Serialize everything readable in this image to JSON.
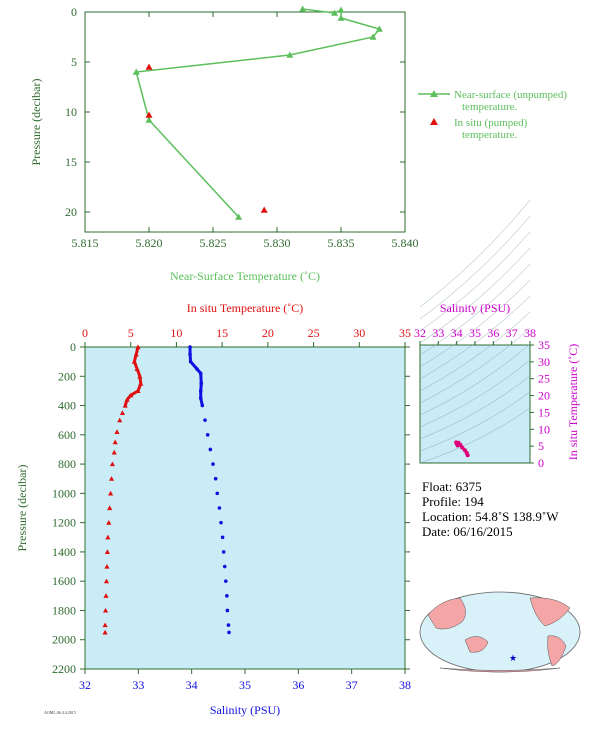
{
  "colors": {
    "axis": "#2f6b2f",
    "near_surface": "#5cbf5c",
    "in_situ_temp": "#e01010",
    "salinity": "#1010e0",
    "salinity_axis": "#cc00cc",
    "panel_bg": "#c9ecf7",
    "map_land": "#f4a6a6",
    "map_ocean": "#d9f2fa"
  },
  "chart_data": [
    {
      "type": "line",
      "xlabel": "Near-Surface Temperature (˚C)",
      "ylabel": "Pressure (decibar)",
      "xlim": [
        5.815,
        5.84
      ],
      "ylim": [
        0,
        22
      ],
      "y_inverted": true,
      "x_ticks": [
        "5.815",
        "5.820",
        "5.825",
        "5.830",
        "5.835",
        "5.840"
      ],
      "y_ticks": [
        "0",
        "5",
        "10",
        "15",
        "20"
      ],
      "legend_position": "right",
      "series": [
        {
          "name": "Near-surface (unpumped) temperature.",
          "marker": "triangle",
          "line": true,
          "points": [
            [
              5.832,
              -0.3
            ],
            [
              5.8345,
              0.1
            ],
            [
              5.835,
              -0.2
            ],
            [
              5.835,
              0.6
            ],
            [
              5.838,
              1.7
            ],
            [
              5.8375,
              2.5
            ],
            [
              5.831,
              4.3
            ],
            [
              5.819,
              6.0
            ],
            [
              5.82,
              10.8
            ],
            [
              5.827,
              20.5
            ]
          ]
        },
        {
          "name": "In situ (pumped) temperature.",
          "marker": "triangle",
          "line": false,
          "points": [
            [
              5.82,
              5.5
            ],
            [
              5.82,
              10.3
            ],
            [
              5.829,
              19.8
            ]
          ]
        }
      ]
    },
    {
      "type": "line",
      "xlabel_top": "In situ Temperature (˚C)",
      "xlabel_bottom": "Salinity (PSU)",
      "ylabel": "Pressure (decibar)",
      "temperature_lim": [
        0,
        35
      ],
      "salinity_lim": [
        32,
        38
      ],
      "pressure_lim": [
        0,
        2200
      ],
      "y_inverted": true,
      "temperature_ticks": [
        "0",
        "5",
        "10",
        "15",
        "20",
        "25",
        "30",
        "35"
      ],
      "salinity_ticks": [
        "32",
        "33",
        "34",
        "35",
        "36",
        "37",
        "38"
      ],
      "pressure_ticks": [
        "0",
        "200",
        "400",
        "600",
        "800",
        "1000",
        "1200",
        "1400",
        "1600",
        "1800",
        "2000",
        "2200"
      ],
      "temperature_profile": [
        [
          5.8,
          0
        ],
        [
          5.6,
          50
        ],
        [
          5.4,
          100
        ],
        [
          5.7,
          150
        ],
        [
          6.0,
          200
        ],
        [
          6.1,
          250
        ],
        [
          5.8,
          300
        ],
        [
          5.0,
          330
        ],
        [
          4.6,
          360
        ],
        [
          4.4,
          400
        ],
        [
          4.1,
          450
        ],
        [
          3.8,
          500
        ],
        [
          3.5,
          580
        ],
        [
          3.3,
          650
        ],
        [
          3.2,
          720
        ],
        [
          3.0,
          800
        ],
        [
          2.9,
          900
        ],
        [
          2.8,
          1000
        ],
        [
          2.7,
          1100
        ],
        [
          2.6,
          1200
        ],
        [
          2.5,
          1300
        ],
        [
          2.45,
          1400
        ],
        [
          2.4,
          1500
        ],
        [
          2.35,
          1600
        ],
        [
          2.3,
          1700
        ],
        [
          2.25,
          1800
        ],
        [
          2.2,
          1900
        ],
        [
          2.2,
          1950
        ]
      ],
      "salinity_profile": [
        [
          33.97,
          0
        ],
        [
          33.97,
          50
        ],
        [
          33.98,
          100
        ],
        [
          34.1,
          150
        ],
        [
          34.17,
          180
        ],
        [
          34.18,
          250
        ],
        [
          34.17,
          300
        ],
        [
          34.17,
          350
        ],
        [
          34.2,
          400
        ],
        [
          34.25,
          500
        ],
        [
          34.3,
          600
        ],
        [
          34.35,
          700
        ],
        [
          34.4,
          800
        ],
        [
          34.45,
          900
        ],
        [
          34.48,
          1000
        ],
        [
          34.52,
          1100
        ],
        [
          34.55,
          1200
        ],
        [
          34.58,
          1300
        ],
        [
          34.6,
          1400
        ],
        [
          34.62,
          1500
        ],
        [
          34.64,
          1600
        ],
        [
          34.66,
          1700
        ],
        [
          34.67,
          1800
        ],
        [
          34.69,
          1900
        ],
        [
          34.7,
          1950
        ]
      ]
    },
    {
      "type": "scatter",
      "xlabel": "Salinity (PSU)",
      "ylabel": "In situ Temperature (˚C)",
      "xlim": [
        32,
        38
      ],
      "ylim": [
        0,
        35
      ],
      "x_ticks": [
        "32",
        "33",
        "34",
        "35",
        "36",
        "37",
        "38"
      ],
      "y_ticks": [
        "0",
        "5",
        "10",
        "15",
        "20",
        "25",
        "30",
        "35"
      ],
      "points": [
        [
          34.6,
          2.3
        ],
        [
          34.55,
          3.0
        ],
        [
          34.45,
          3.8
        ],
        [
          34.3,
          4.6
        ],
        [
          34.2,
          5.4
        ],
        [
          34.1,
          6.0
        ],
        [
          34.0,
          5.8
        ],
        [
          33.97,
          6.1
        ],
        [
          34.05,
          5.2
        ]
      ]
    }
  ],
  "info": {
    "float": "Float:  6375",
    "profile": "Profile:  194",
    "location": "Location:  54.8˚S  138.9˚W",
    "date": "Date:  06/16/2015"
  },
  "footer": "AOML.06.4.4.2015"
}
